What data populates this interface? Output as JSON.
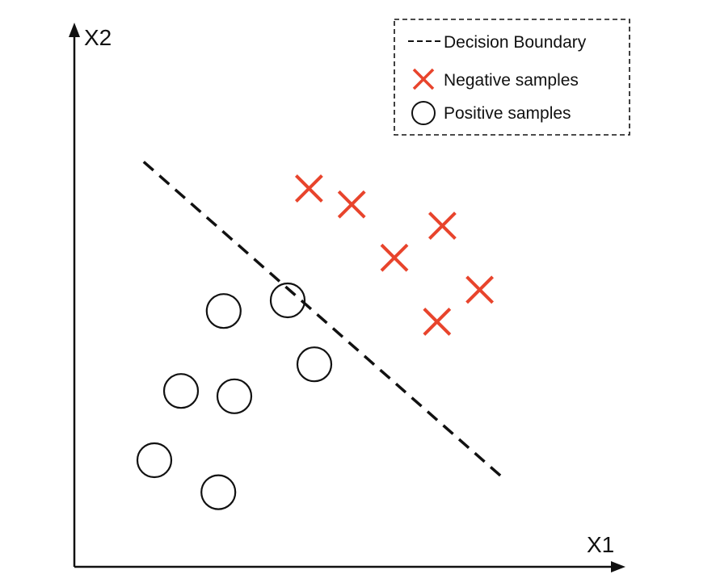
{
  "axes": {
    "x_label": "X1",
    "y_label": "X2"
  },
  "legend": {
    "boundary_label": "Decision Boundary",
    "negative_label": "Negative samples",
    "positive_label": "Positive samples"
  },
  "colors": {
    "negative": "#e8442c",
    "positive": "#111111",
    "boundary": "#111111",
    "axis": "#111111"
  },
  "chart_data": {
    "type": "scatter",
    "x_range": [
      0,
      100
    ],
    "y_range": [
      0,
      100
    ],
    "decision_boundary": [
      [
        13,
        76
      ],
      [
        80,
        17
      ]
    ],
    "series": [
      {
        "name": "Negative samples",
        "marker": "x",
        "points": [
          [
            44,
            71
          ],
          [
            52,
            68
          ],
          [
            69,
            64
          ],
          [
            60,
            58
          ],
          [
            76,
            52
          ],
          [
            68,
            46
          ]
        ]
      },
      {
        "name": "Positive samples",
        "marker": "circle",
        "points": [
          [
            28,
            48
          ],
          [
            40,
            50
          ],
          [
            45,
            38
          ],
          [
            20,
            33
          ],
          [
            30,
            32
          ],
          [
            15,
            20
          ],
          [
            27,
            14
          ]
        ]
      }
    ]
  }
}
